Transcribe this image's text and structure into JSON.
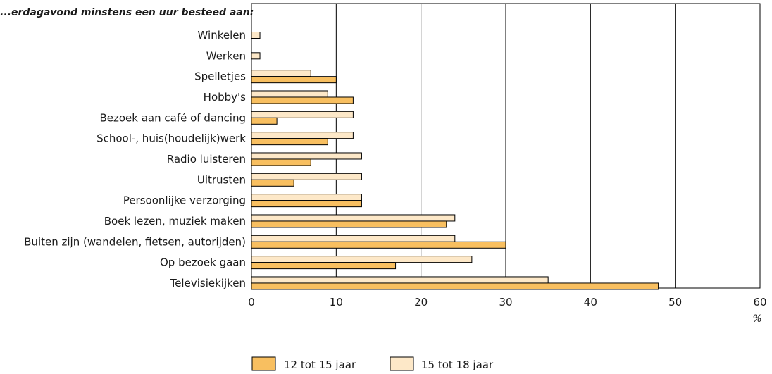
{
  "chart_data": {
    "type": "bar",
    "orientation": "horizontal",
    "caption": "...erdagavond minstens een uur besteed aan:",
    "categories": [
      "Winkelen",
      "Werken",
      "Spelletjes",
      "Hobby's",
      "Bezoek aan café of dancing",
      "School-, huis(houdelijk)werk",
      "Radio luisteren",
      "Uitrusten",
      "Persoonlijke verzorging",
      "Boek lezen, muziek maken",
      "Buiten zijn (wandelen, fietsen, autorijden)",
      "Op bezoek gaan",
      "Televisiekijken"
    ],
    "series": [
      {
        "name": "15 tot 18 jaar",
        "color": "#fde8c8",
        "values": [
          1,
          1,
          7,
          9,
          12,
          12,
          13,
          13,
          13,
          24,
          24,
          26,
          35
        ]
      },
      {
        "name": "12 tot 15 jaar",
        "color": "#f8bf60",
        "values": [
          null,
          null,
          10,
          12,
          3,
          9,
          7,
          5,
          13,
          23,
          30,
          17,
          48
        ]
      }
    ],
    "xlim": [
      0,
      60
    ],
    "xticks": [
      0,
      10,
      20,
      30,
      40,
      50,
      60
    ],
    "xlabel": "%",
    "grid": "vertical",
    "legend": {
      "placement": "bottom-center",
      "order": [
        "12 tot 15 jaar",
        "15 tot 18 jaar"
      ]
    }
  }
}
